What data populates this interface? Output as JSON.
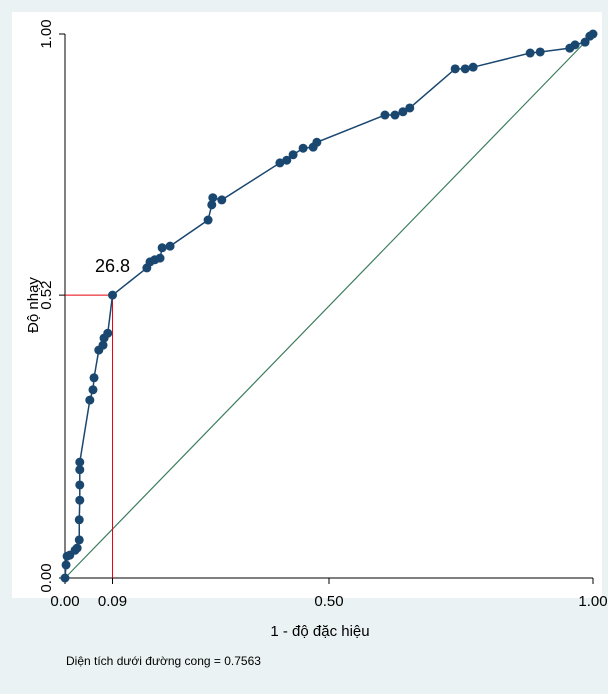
{
  "chart_data": {
    "type": "line",
    "x_label": "1 - độ đặc hiệu",
    "y_label": "Độ nhạy",
    "note": "Diện tích dưới đường cong = 0.7563",
    "xlim": [
      0,
      1
    ],
    "ylim": [
      0,
      1
    ],
    "xticks": [
      {
        "value": 0,
        "label": "0.00"
      },
      {
        "value": 0.09,
        "label": "0.09"
      },
      {
        "value": 0.5,
        "label": "0.50"
      },
      {
        "value": 1,
        "label": "1.00"
      }
    ],
    "yticks": [
      {
        "value": 0,
        "label": "0.00"
      },
      {
        "value": 0.52,
        "label": "0.52"
      },
      {
        "value": 1,
        "label": "1.00"
      }
    ],
    "cutoff": {
      "x": 0.09,
      "y": 0.52,
      "label": "26.8",
      "color": "#e8000b"
    },
    "reference_color": "#3a7d5c",
    "series": [
      {
        "color": "#1a476f",
        "x": [
          0,
          0.002,
          0.004,
          0.009,
          0.019,
          0.023,
          0.027,
          0.027,
          0.028,
          0.028,
          0.028,
          0.028,
          0.047,
          0.053,
          0.055,
          0.064,
          0.072,
          0.074,
          0.081,
          0.09,
          0.155,
          0.161,
          0.17,
          0.18,
          0.184,
          0.199,
          0.271,
          0.278,
          0.28,
          0.297,
          0.407,
          0.42,
          0.432,
          0.451,
          0.47,
          0.477,
          0.606,
          0.625,
          0.64,
          0.653,
          0.739,
          0.758,
          0.773,
          0.881,
          0.9,
          0.956,
          0.966,
          0.985,
          0.994,
          1
        ],
        "values": [
          0,
          0.024,
          0.04,
          0.042,
          0.051,
          0.055,
          0.07,
          0.107,
          0.143,
          0.171,
          0.199,
          0.213,
          0.327,
          0.346,
          0.368,
          0.419,
          0.428,
          0.441,
          0.45,
          0.52,
          0.57,
          0.581,
          0.585,
          0.588,
          0.607,
          0.61,
          0.658,
          0.686,
          0.699,
          0.695,
          0.763,
          0.768,
          0.778,
          0.79,
          0.792,
          0.801,
          0.851,
          0.851,
          0.857,
          0.864,
          0.936,
          0.936,
          0.939,
          0.965,
          0.967,
          0.974,
          0.98,
          0.985,
          0.996,
          1
        ]
      }
    ]
  }
}
